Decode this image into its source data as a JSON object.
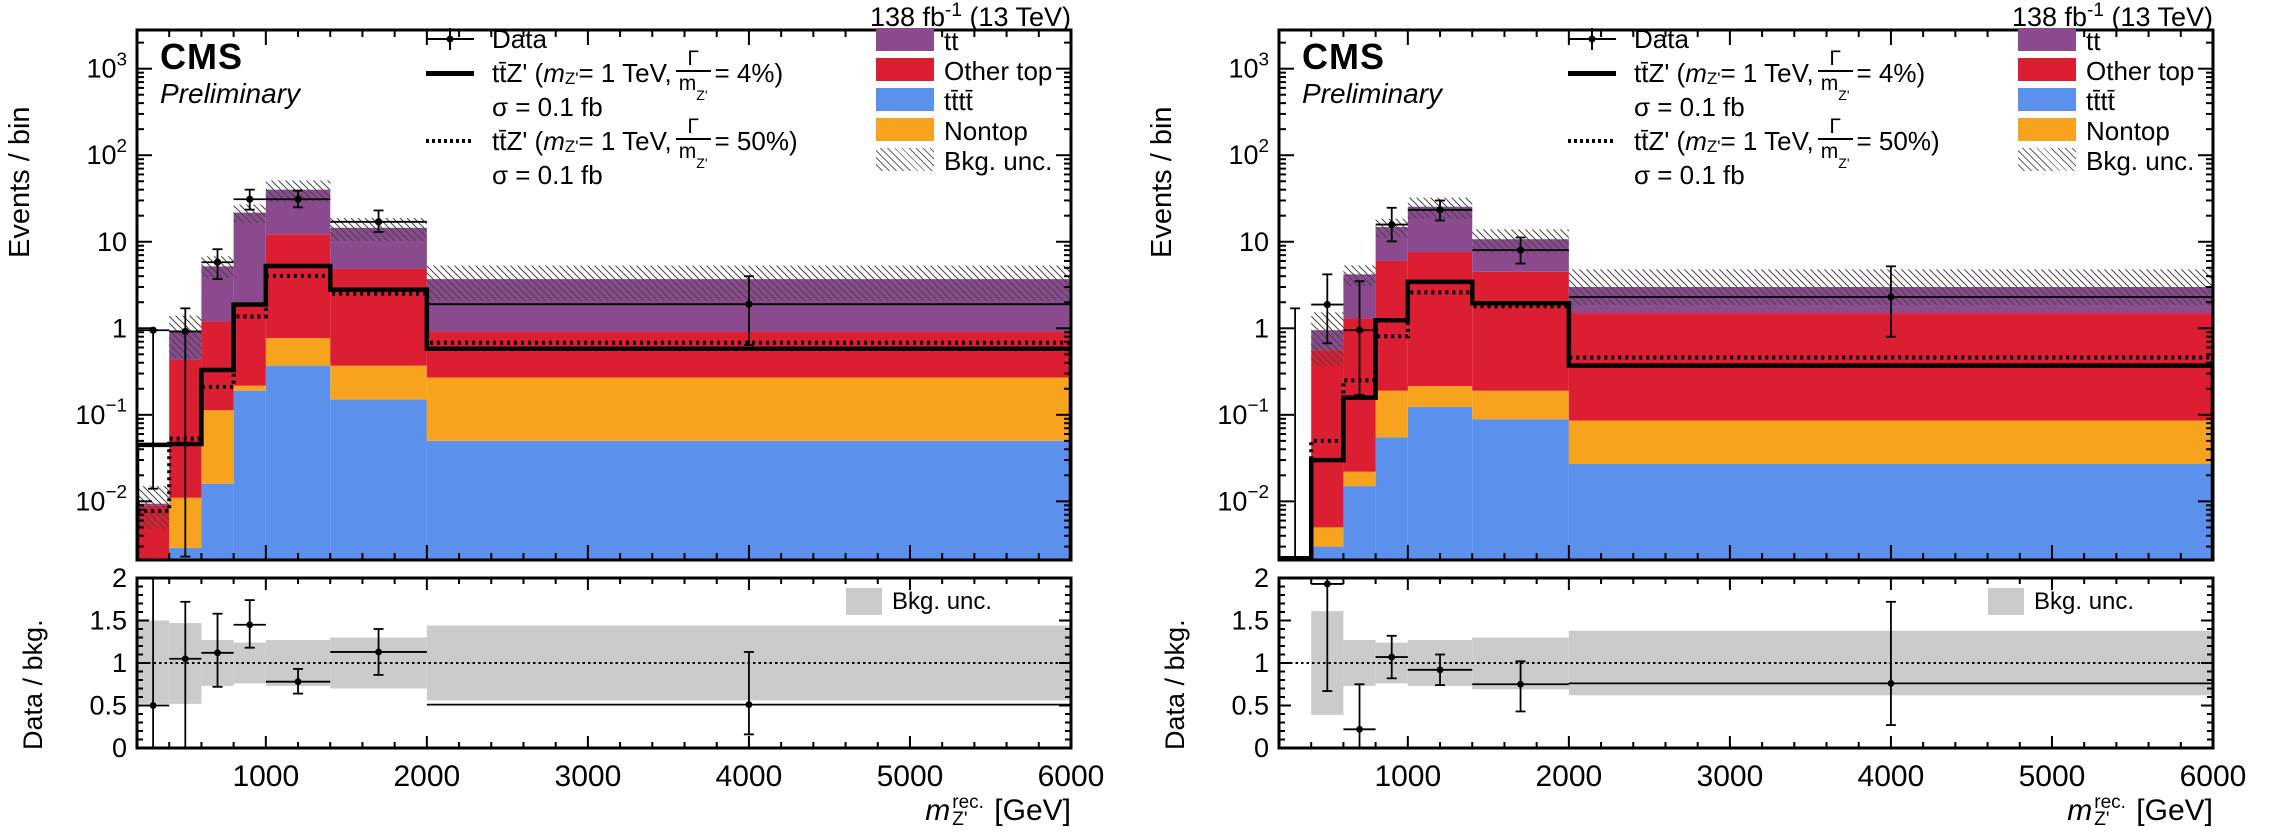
{
  "header": {
    "lumi_pre": "138 fb",
    "lumi_sup": "-1",
    "lumi_post": " (13 TeV)"
  },
  "cms": {
    "label": "CMS",
    "sublabel": "Preliminary"
  },
  "colors": {
    "tt": "#8B4A8E",
    "other_top": "#DC1E32",
    "tttt": "#5C90ED",
    "nontop": "#F8A31D",
    "unc_hatch": "#444444",
    "ratio_band": "#cbcbcb",
    "data": "#000000",
    "frame": "#000000"
  },
  "legend": {
    "data_label": "Data",
    "sig_narrow": {
      "p1": "tt̄Z' (",
      "m": "m",
      "msub": "Z'",
      "p2": " = 1 TeV, ",
      "fnum": "Γ",
      "fden": "m",
      "fdensub": "Z'",
      "p3": " = 4%)",
      "sigma": "σ = 0.1 fb"
    },
    "sig_wide": {
      "p1": "tt̄Z' (",
      "m": "m",
      "msub": "Z'",
      "p2": " = 1 TeV, ",
      "fnum": "Γ",
      "fden": "m",
      "fdensub": "Z'",
      "p3": " = 50%)",
      "sigma": "σ = 0.1 fb"
    },
    "stacks": [
      {
        "label": "tt̄",
        "color_key": "tt"
      },
      {
        "label": "Other top",
        "color_key": "other_top"
      },
      {
        "label": "tt̄tt̄",
        "color_key": "tttt"
      },
      {
        "label": "Nontop",
        "color_key": "nontop"
      }
    ],
    "unc_label": "Bkg. unc.",
    "ratio_unc_label": "Bkg. unc."
  },
  "axes": {
    "x": {
      "min": 200,
      "max": 6000,
      "minor_step": 200,
      "major_ticks": [
        1000,
        2000,
        3000,
        4000,
        5000,
        6000
      ],
      "tick_labels": [
        "1000",
        "2000",
        "3000",
        "4000",
        "5000",
        "6000"
      ],
      "title": {
        "base": "m",
        "sup": "rec.",
        "sub": "Z'",
        "unit": "[GeV]"
      }
    },
    "y": {
      "min": 0.0021,
      "max": 2800,
      "label": "Events / bin",
      "tick_labels": [
        {
          "v": 1000,
          "t": "10^3"
        },
        {
          "v": 100,
          "t": "10^2"
        },
        {
          "v": 10,
          "t": "10"
        },
        {
          "v": 1,
          "t": "1"
        },
        {
          "v": 0.1,
          "t": "10^−1"
        },
        {
          "v": 0.01,
          "t": "10^−2"
        }
      ]
    },
    "ratio": {
      "min": 0,
      "max": 2,
      "label": "Data / bkg.",
      "minor_step": 0.1,
      "ticks": [
        {
          "v": 0,
          "t": "0"
        },
        {
          "v": 0.5,
          "t": "0.5"
        },
        {
          "v": 1,
          "t": "1"
        },
        {
          "v": 1.5,
          "t": "1.5"
        },
        {
          "v": 2,
          "t": "2"
        }
      ]
    }
  },
  "chart_data": [
    {
      "type": "bar",
      "subtype": "stacked-histogram-log-with-ratio",
      "bin_edges": [
        200,
        400,
        600,
        800,
        1000,
        1400,
        2000,
        6000
      ],
      "series": [
        {
          "name": "tttt",
          "color_key": "tttt",
          "values": [
            0.0002,
            0.0029,
            0.016,
            0.19,
            0.37,
            0.15,
            0.05
          ]
        },
        {
          "name": "nontop",
          "color_key": "nontop",
          "values": [
            0.0004,
            0.0081,
            0.097,
            0.027,
            0.4,
            0.22,
            0.22
          ]
        },
        {
          "name": "other_top",
          "color_key": "other_top",
          "values": [
            0.0084,
            0.419,
            1.087,
            1.713,
            11.43,
            4.48,
            0.65
          ]
        },
        {
          "name": "tt",
          "color_key": "tt",
          "values": [
            0.0004,
            0.49,
            4.0,
            19.77,
            27.8,
            9.65,
            2.78
          ]
        }
      ],
      "bkg_total": [
        0.0094,
        0.92,
        5.2,
        21.7,
        40,
        14.5,
        3.7
      ],
      "bkg_unc_lo": [
        0.0048,
        0.45,
        3.8,
        16.5,
        29,
        10.2,
        2.1
      ],
      "bkg_unc_hi": [
        0.015,
        1.4,
        6.8,
        26.9,
        51,
        18.8,
        5.3
      ],
      "signal_narrow": [
        0.045,
        0.046,
        0.33,
        1.88,
        5.25,
        2.79,
        0.58
      ],
      "signal_wide": [
        0.0077,
        0.053,
        0.21,
        1.37,
        4.03,
        2.51,
        0.68
      ],
      "data": {
        "x": [
          300,
          500,
          700,
          900,
          1200,
          1700,
          4000
        ],
        "y": [
          0.95,
          0.92,
          5.8,
          31,
          31,
          17,
          1.9
        ],
        "ylo": [
          0.014,
          0.0023,
          3.7,
          23.5,
          25,
          13,
          0.64
        ],
        "yhi": [
          0.95,
          1.7,
          8.2,
          40,
          39,
          23,
          4.0
        ]
      },
      "ratio": {
        "y": [
          0.5,
          1.05,
          1.12,
          1.45,
          0.78,
          1.13,
          0.51
        ],
        "ylo": [
          0,
          0,
          0.72,
          1.18,
          0.64,
          0.86,
          0.16
        ],
        "yhi": [
          2.0,
          1.72,
          1.58,
          1.74,
          0.93,
          1.4,
          1.13
        ],
        "band_lo": [
          0.52,
          0.52,
          0.73,
          0.76,
          0.73,
          0.7,
          0.56
        ],
        "band_hi": [
          1.5,
          1.47,
          1.27,
          1.24,
          1.27,
          1.3,
          1.44
        ]
      }
    },
    {
      "type": "bar",
      "subtype": "stacked-histogram-log-with-ratio",
      "bin_edges": [
        200,
        400,
        600,
        800,
        1000,
        1400,
        2000,
        6000
      ],
      "series": [
        {
          "name": "tttt",
          "color_key": "tttt",
          "values": [
            0,
            0.003,
            0.015,
            0.055,
            0.123,
            0.089,
            0.027
          ]
        },
        {
          "name": "nontop",
          "color_key": "nontop",
          "values": [
            0,
            0.002,
            0.007,
            0.135,
            0.092,
            0.101,
            0.059
          ]
        },
        {
          "name": "other_top",
          "color_key": "other_top",
          "values": [
            0,
            0.555,
            1.278,
            5.81,
            7.385,
            4.31,
            1.414
          ]
        },
        {
          "name": "tt",
          "color_key": "tt",
          "values": [
            0,
            0.39,
            2.9,
            8.8,
            17.8,
            6.2,
            1.5
          ]
        }
      ],
      "bkg_total": [
        0,
        0.95,
        4.2,
        14.8,
        25.4,
        10.7,
        3.0
      ],
      "bkg_unc_lo": [
        0,
        0.37,
        3.07,
        11.2,
        18.5,
        7.4,
        1.86
      ],
      "bkg_unc_hi": [
        0,
        1.53,
        5.33,
        18.4,
        32.3,
        13.9,
        4.8
      ],
      "signal_narrow": [
        0.0022,
        0.03,
        0.158,
        1.24,
        3.44,
        1.95,
        0.37
      ],
      "signal_wide": [
        0.0022,
        0.05,
        0.25,
        0.81,
        2.6,
        1.8,
        0.46
      ],
      "data": {
        "x": [
          300,
          500,
          700,
          900,
          1200,
          1700,
          4000
        ],
        "y": [
          null,
          1.88,
          0.95,
          15.8,
          23.4,
          8.0,
          2.3
        ],
        "ylo": [
          0.002,
          0.67,
          0.17,
          10.1,
          17.6,
          5.6,
          0.8
        ],
        "yhi": [
          1.7,
          4.2,
          3.5,
          24.7,
          30,
          11.2,
          5.2
        ]
      },
      "ratio": {
        "y": [
          null,
          1.93,
          0.22,
          1.07,
          0.92,
          0.75,
          0.76
        ],
        "ylo": [
          null,
          0.67,
          0,
          0.82,
          0.74,
          0.43,
          0.27
        ],
        "yhi": [
          null,
          2.0,
          0.75,
          1.32,
          1.1,
          1.02,
          1.72
        ],
        "band_lo": [
          0,
          0.39,
          0.73,
          0.76,
          0.73,
          0.69,
          0.62
        ],
        "band_hi": [
          0,
          1.61,
          1.27,
          1.24,
          1.27,
          1.3,
          1.38
        ]
      }
    }
  ]
}
